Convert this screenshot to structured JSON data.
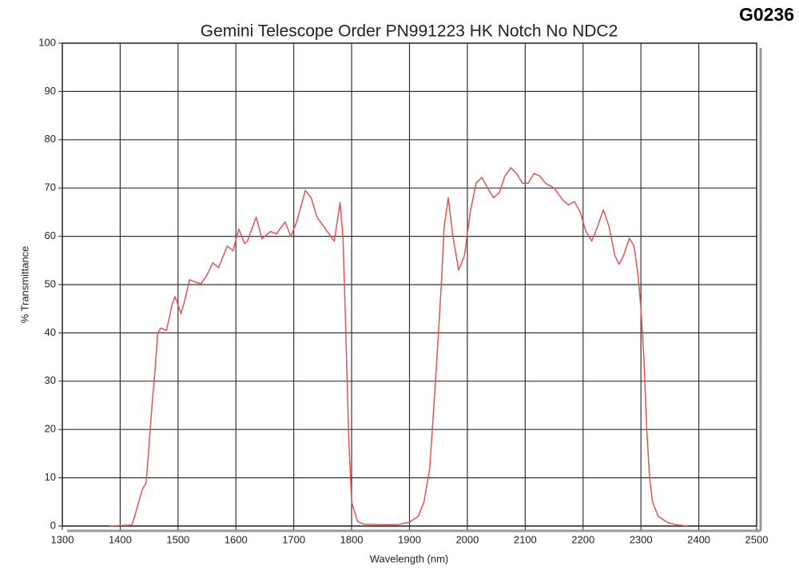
{
  "stamp": "G0236",
  "chart_data": {
    "type": "line",
    "title": "Gemini Telescope Order PN991223 HK Notch No NDC2",
    "x_label": "Wavelength (nm)",
    "y_label": "% Transmittance",
    "color": "#e8514f",
    "grid": true,
    "xlim": [
      1300,
      2500
    ],
    "xticks": [
      1300,
      1400,
      1500,
      1600,
      1700,
      1800,
      1900,
      2000,
      2100,
      2200,
      2300,
      2400,
      2500
    ],
    "ylim": [
      0,
      100
    ],
    "yticks": [
      0,
      10,
      20,
      30,
      40,
      50,
      60,
      70,
      80,
      90,
      100
    ],
    "x": [
      1380,
      1420,
      1425,
      1432,
      1438,
      1445,
      1450,
      1455,
      1460,
      1465,
      1470,
      1480,
      1490,
      1495,
      1505,
      1510,
      1520,
      1530,
      1540,
      1550,
      1560,
      1570,
      1585,
      1595,
      1605,
      1615,
      1620,
      1635,
      1645,
      1660,
      1670,
      1685,
      1695,
      1705,
      1720,
      1730,
      1740,
      1755,
      1770,
      1780,
      1785,
      1790,
      1795,
      1800,
      1810,
      1820,
      1850,
      1880,
      1900,
      1915,
      1925,
      1935,
      1945,
      1955,
      1960,
      1967,
      1975,
      1985,
      1995,
      2005,
      2015,
      2025,
      2035,
      2045,
      2055,
      2065,
      2075,
      2085,
      2095,
      2105,
      2115,
      2125,
      2135,
      2150,
      2165,
      2175,
      2185,
      2195,
      2205,
      2215,
      2225,
      2235,
      2245,
      2255,
      2262,
      2270,
      2280,
      2288,
      2295,
      2300,
      2305,
      2310,
      2315,
      2320,
      2330,
      2345,
      2360,
      2380
    ],
    "values": [
      0,
      0.2,
      2,
      5,
      7.5,
      9,
      17,
      25,
      32,
      40,
      41,
      40.5,
      46,
      47.5,
      44,
      46,
      51,
      50.5,
      50.2,
      52,
      54.5,
      53.5,
      58,
      57,
      61.5,
      58.5,
      59,
      64,
      59.5,
      61,
      60.5,
      63,
      60,
      63,
      69.5,
      68,
      64,
      61.5,
      59,
      67,
      60,
      40,
      18,
      5,
      1,
      0.4,
      0.3,
      0.3,
      0.8,
      2,
      5,
      12,
      30,
      50,
      62,
      68,
      60,
      53,
      56,
      65,
      71,
      72.2,
      70,
      68,
      69,
      72.5,
      74.2,
      73,
      71,
      71,
      73,
      72.5,
      71,
      70,
      67.5,
      66.5,
      67.2,
      65,
      61,
      59,
      62,
      65.5,
      62,
      56,
      54.2,
      56,
      59.6,
      58,
      52,
      45,
      35,
      20,
      10,
      5,
      2,
      0.8,
      0.3,
      0
    ]
  }
}
